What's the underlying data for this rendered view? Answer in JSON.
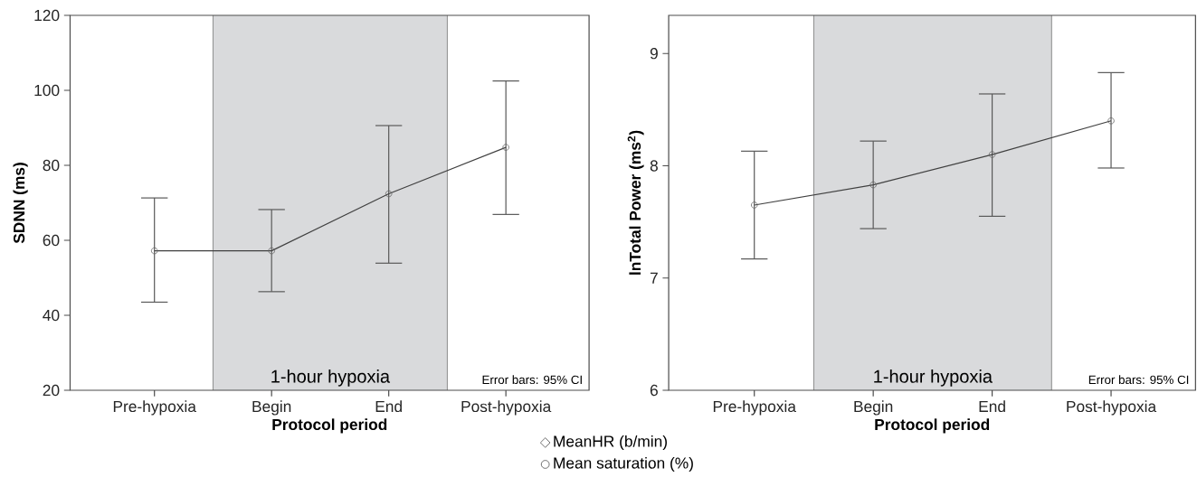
{
  "chart_data": [
    {
      "type": "line",
      "ylabel": "SDNN (ms)",
      "xlabel": "Protocol period",
      "categories": [
        "Pre-hypoxia",
        "Begin",
        "End",
        "Post-hypoxia"
      ],
      "series": [
        {
          "color": "#404040",
          "values": [
            57.2,
            57.2,
            72.4,
            84.8
          ],
          "errors": [
            [
              43.5,
              71.3
            ],
            [
              46.3,
              68.2
            ],
            [
              53.9,
              90.6
            ],
            [
              66.9,
              102.5
            ]
          ]
        }
      ],
      "ylim": [
        20,
        120
      ],
      "yticks": [
        20,
        40,
        60,
        80,
        100,
        120
      ],
      "marker": "circle",
      "grid": false,
      "annotations": [
        "1-hour hypoxia",
        "Error bars: 95% CI",
        "MeanHR (b/min)",
        "Mean saturation (%)"
      ]
    },
    {
      "type": "line",
      "ylabel": "lnTotal Power (ms$^{2}$)",
      "xlabel": "Protocol period",
      "categories": [
        "Pre-hypoxia",
        "Begin",
        "End",
        "Post-hypoxia"
      ],
      "series": [
        {
          "color": "#404040",
          "values": [
            7.65,
            7.83,
            8.1,
            8.4
          ],
          "errors": [
            [
              7.17,
              8.13
            ],
            [
              7.44,
              8.22
            ],
            [
              7.55,
              8.64
            ],
            [
              7.98,
              8.83
            ]
          ]
        }
      ],
      "ylim": [
        6,
        9.34
      ],
      "yticks": [
        6,
        7,
        8,
        9
      ],
      "marker": "circle",
      "grid": false,
      "annotations": [
        "1-hour hypoxia",
        "Error bars: 95% CI"
      ]
    }
  ]
}
